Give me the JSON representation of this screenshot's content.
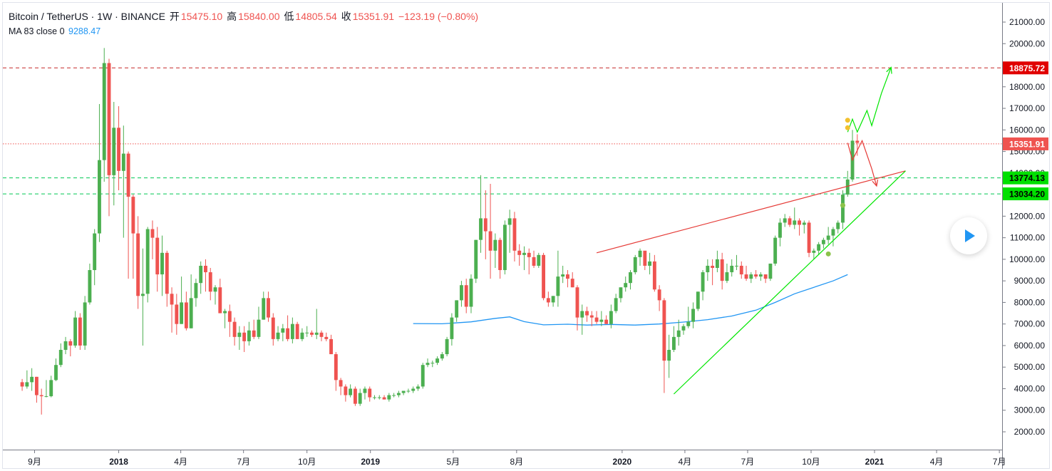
{
  "header": {
    "symbol": "Bitcoin / TetherUS · 1W · BINANCE",
    "open_label": "开",
    "open": "15475.10",
    "high_label": "高",
    "high": "15840.00",
    "low_label": "低",
    "low": "14805.54",
    "close_label": "收",
    "close": "15351.91",
    "change": "−123.19 (−0.80%)",
    "ma_label": "MA 83 close 0",
    "ma_value": "9288.47"
  },
  "colors": {
    "up": "#4caf50",
    "down": "#ef5350",
    "ma": "#2196f3",
    "trend_green": "#00e600",
    "trend_red": "#e53935",
    "grid": "#f0f3fa"
  },
  "chart_data": {
    "type": "candlestick",
    "timeframe": "1W",
    "y_ticks": [
      2000,
      3000,
      4000,
      5000,
      6000,
      7000,
      8000,
      9000,
      10000,
      11000,
      12000,
      13000,
      14000,
      15000,
      16000,
      17000,
      18000,
      19000,
      20000,
      21000
    ],
    "y_tick_labels": [
      "2000.00",
      "3000.00",
      "4000.00",
      "5000.00",
      "6000.00",
      "7000.00",
      "8000.00",
      "9000.00",
      "10000.00",
      "11000.00",
      "12000.00",
      "13000.00",
      "14000.00",
      "15000.00",
      "16000.00",
      "17000.00",
      "18000.00",
      "19000.00",
      "20000.00",
      "21000.00"
    ],
    "ylim": [
      1000,
      21800
    ],
    "x_range": [
      "2017-07-17",
      "2021-07-05"
    ],
    "x_ticks": [
      {
        "date": "2017-09-01",
        "label": "9月",
        "bold": false
      },
      {
        "date": "2018-01-01",
        "label": "2018",
        "bold": true
      },
      {
        "date": "2018-04-01",
        "label": "4月",
        "bold": false
      },
      {
        "date": "2018-07-01",
        "label": "7月",
        "bold": false
      },
      {
        "date": "2018-10-01",
        "label": "10月",
        "bold": false
      },
      {
        "date": "2019-01-01",
        "label": "2019",
        "bold": true
      },
      {
        "date": "2019-05-01",
        "label": "5月",
        "bold": false
      },
      {
        "date": "2019-08-01",
        "label": "8月",
        "bold": false
      },
      {
        "date": "2020-01-01",
        "label": "2020",
        "bold": true
      },
      {
        "date": "2020-04-01",
        "label": "4月",
        "bold": false
      },
      {
        "date": "2020-07-01",
        "label": "7月",
        "bold": false
      },
      {
        "date": "2020-10-01",
        "label": "10月",
        "bold": false
      },
      {
        "date": "2021-01-01",
        "label": "2021",
        "bold": true
      },
      {
        "date": "2021-04-01",
        "label": "4月",
        "bold": false
      },
      {
        "date": "2021-07-01",
        "label": "7月",
        "bold": false
      }
    ],
    "first_candle_date": "2017-08-14",
    "candles": [
      [
        4300,
        4450,
        3900,
        4100
      ],
      [
        4100,
        4850,
        4000,
        4300
      ],
      [
        4300,
        4950,
        3900,
        4550
      ],
      [
        4550,
        4550,
        3350,
        3700
      ],
      [
        3700,
        4000,
        2800,
        3650
      ],
      [
        3650,
        4400,
        3600,
        3650
      ],
      [
        3650,
        4600,
        3600,
        4400
      ],
      [
        4400,
        5400,
        4350,
        5100
      ],
      [
        5100,
        6100,
        5000,
        5800
      ],
      [
        5800,
        6400,
        5600,
        6200
      ],
      [
        6200,
        6300,
        5500,
        6000
      ],
      [
        6000,
        7600,
        5900,
        7300
      ],
      [
        7300,
        7500,
        5800,
        6000
      ],
      [
        6000,
        8300,
        5800,
        8000
      ],
      [
        8000,
        9800,
        7900,
        9500
      ],
      [
        9500,
        11400,
        8800,
        11200
      ],
      [
        11200,
        17200,
        10800,
        14600
      ],
      [
        14600,
        19800,
        13600,
        19100
      ],
      [
        19100,
        19300,
        12000,
        13900
      ],
      [
        13900,
        17300,
        12500,
        16100
      ],
      [
        16100,
        17100,
        13200,
        14100
      ],
      [
        14100,
        16200,
        11000,
        14900
      ],
      [
        14900,
        15000,
        9100,
        12900
      ],
      [
        12900,
        13000,
        9100,
        11200
      ],
      [
        11200,
        12000,
        7700,
        8300
      ],
      [
        8300,
        10500,
        6000,
        8400
      ],
      [
        8400,
        11500,
        8000,
        11400
      ],
      [
        11400,
        11800,
        10000,
        11000
      ],
      [
        11000,
        11500,
        8500,
        9300
      ],
      [
        9300,
        11100,
        8300,
        10300
      ],
      [
        10300,
        10400,
        7800,
        8400
      ],
      [
        8400,
        8700,
        6600,
        7900
      ],
      [
        7900,
        8400,
        6500,
        7000
      ],
      [
        7000,
        9200,
        7000,
        8000
      ],
      [
        8000,
        8500,
        6700,
        6800
      ],
      [
        6800,
        9300,
        6800,
        8200
      ],
      [
        8200,
        9100,
        7800,
        8900
      ],
      [
        8900,
        9900,
        8400,
        9700
      ],
      [
        9700,
        10000,
        8500,
        9400
      ],
      [
        9400,
        9600,
        8100,
        8500
      ],
      [
        8500,
        8800,
        7900,
        8700
      ],
      [
        8700,
        9100,
        7500,
        7500
      ],
      [
        7500,
        7700,
        6800,
        7600
      ],
      [
        7600,
        7900,
        6400,
        7100
      ],
      [
        7100,
        7300,
        6000,
        6400
      ],
      [
        6400,
        6900,
        5800,
        6600
      ],
      [
        6600,
        6900,
        5700,
        6200
      ],
      [
        6200,
        7100,
        6000,
        6700
      ],
      [
        6700,
        7200,
        6300,
        6400
      ],
      [
        6400,
        7800,
        6300,
        7200
      ],
      [
        7200,
        8500,
        7200,
        8200
      ],
      [
        8200,
        8500,
        7100,
        7300
      ],
      [
        7300,
        7500,
        6000,
        6300
      ],
      [
        6300,
        6900,
        6200,
        6600
      ],
      [
        6600,
        7000,
        6200,
        6800
      ],
      [
        6800,
        7400,
        6200,
        6300
      ],
      [
        6300,
        7300,
        6100,
        7000
      ],
      [
        7000,
        7100,
        6300,
        6300
      ],
      [
        6300,
        6800,
        6200,
        6600
      ],
      [
        6600,
        6900,
        6400,
        6600
      ],
      [
        6600,
        6700,
        6400,
        6500
      ],
      [
        6500,
        7700,
        6300,
        6600
      ],
      [
        6600,
        6700,
        6200,
        6400
      ],
      [
        6400,
        6600,
        6200,
        6300
      ],
      [
        6300,
        6500,
        5600,
        5600
      ],
      [
        5600,
        5700,
        3900,
        4400
      ],
      [
        4400,
        4500,
        3700,
        4100
      ],
      [
        4100,
        4200,
        3400,
        3700
      ],
      [
        3700,
        4200,
        3600,
        4000
      ],
      [
        4000,
        4100,
        3200,
        3300
      ],
      [
        3300,
        4000,
        3200,
        3800
      ],
      [
        3800,
        4100,
        3500,
        4000
      ],
      [
        4000,
        4100,
        3400,
        3600
      ],
      [
        3600,
        3700,
        3500,
        3600
      ],
      [
        3600,
        3700,
        3500,
        3600
      ],
      [
        3600,
        3700,
        3500,
        3500
      ],
      [
        3500,
        3800,
        3400,
        3700
      ],
      [
        3700,
        3800,
        3600,
        3700
      ],
      [
        3700,
        3900,
        3600,
        3800
      ],
      [
        3800,
        3900,
        3700,
        3900
      ],
      [
        3900,
        4000,
        3800,
        3900
      ],
      [
        3900,
        4100,
        3800,
        4000
      ],
      [
        4000,
        4200,
        3900,
        4100
      ],
      [
        4100,
        5200,
        4000,
        5100
      ],
      [
        5100,
        5400,
        5000,
        5200
      ],
      [
        5200,
        5300,
        5000,
        5200
      ],
      [
        5200,
        5500,
        5100,
        5400
      ],
      [
        5400,
        5700,
        5300,
        5600
      ],
      [
        5600,
        6400,
        5500,
        6300
      ],
      [
        6300,
        7500,
        6000,
        7300
      ],
      [
        7300,
        8100,
        7100,
        8100
      ],
      [
        8100,
        9000,
        7800,
        8800
      ],
      [
        8800,
        9100,
        7500,
        7800
      ],
      [
        7800,
        9300,
        7500,
        9100
      ],
      [
        9100,
        10900,
        8900,
        10900
      ],
      [
        10900,
        13900,
        10300,
        11900
      ],
      [
        11900,
        13200,
        10000,
        11300
      ],
      [
        11300,
        13500,
        9100,
        10400
      ],
      [
        10400,
        11200,
        9600,
        10900
      ],
      [
        10900,
        11000,
        9100,
        9500
      ],
      [
        9500,
        11800,
        9300,
        11600
      ],
      [
        11600,
        12300,
        10300,
        11900
      ],
      [
        11900,
        12200,
        9900,
        10400
      ],
      [
        10400,
        10700,
        9700,
        10200
      ],
      [
        10200,
        10600,
        9500,
        10300
      ],
      [
        10300,
        10500,
        9300,
        10100
      ],
      [
        10100,
        10400,
        9600,
        9700
      ],
      [
        9700,
        10300,
        9600,
        10200
      ],
      [
        10200,
        10300,
        8100,
        8200
      ],
      [
        8200,
        8500,
        7800,
        8000
      ],
      [
        8000,
        8300,
        7800,
        8300
      ],
      [
        8300,
        10400,
        7800,
        9200
      ],
      [
        9200,
        9700,
        8900,
        9300
      ],
      [
        9300,
        9500,
        8700,
        9100
      ],
      [
        9100,
        9400,
        8700,
        8700
      ],
      [
        8700,
        8800,
        6700,
        7300
      ],
      [
        7300,
        7900,
        6500,
        7600
      ],
      [
        7600,
        7800,
        7100,
        7400
      ],
      [
        7400,
        7600,
        6900,
        7300
      ],
      [
        7300,
        7600,
        7000,
        7100
      ],
      [
        7100,
        7600,
        6900,
        7200
      ],
      [
        7200,
        7400,
        7000,
        7000
      ],
      [
        7000,
        7900,
        6800,
        7600
      ],
      [
        7600,
        8400,
        7500,
        8200
      ],
      [
        8200,
        8700,
        8000,
        8700
      ],
      [
        8700,
        9200,
        8500,
        8900
      ],
      [
        8900,
        9500,
        8600,
        9400
      ],
      [
        9400,
        10200,
        9300,
        10100
      ],
      [
        10100,
        10500,
        9700,
        10400
      ],
      [
        10400,
        10300,
        9500,
        9700
      ],
      [
        9700,
        10300,
        9300,
        9900
      ],
      [
        9900,
        10200,
        8500,
        8600
      ],
      [
        8600,
        8800,
        7600,
        8100
      ],
      [
        8100,
        8200,
        3800,
        5300
      ],
      [
        5300,
        6500,
        4500,
        5800
      ],
      [
        5800,
        6900,
        5700,
        6400
      ],
      [
        6400,
        7200,
        6000,
        6700
      ],
      [
        6700,
        7000,
        6500,
        6900
      ],
      [
        6900,
        7800,
        6800,
        7100
      ],
      [
        7100,
        8000,
        6800,
        7700
      ],
      [
        7700,
        8500,
        7600,
        8500
      ],
      [
        8500,
        9500,
        8100,
        9400
      ],
      [
        9400,
        10000,
        9000,
        9700
      ],
      [
        9700,
        10000,
        8800,
        9600
      ],
      [
        9600,
        10400,
        9400,
        10000
      ],
      [
        10000,
        10300,
        8600,
        9000
      ],
      [
        9000,
        9800,
        8900,
        9400
      ],
      [
        9400,
        10000,
        9200,
        9700
      ],
      [
        9700,
        10200,
        9500,
        9700
      ],
      [
        9700,
        9900,
        9100,
        9300
      ],
      [
        9300,
        9700,
        9000,
        9100
      ],
      [
        9100,
        9400,
        8900,
        9300
      ],
      [
        9300,
        9500,
        9100,
        9200
      ],
      [
        9200,
        9400,
        9000,
        9300
      ],
      [
        9300,
        9300,
        8900,
        9100
      ],
      [
        9100,
        9800,
        9000,
        9800
      ],
      [
        9800,
        11100,
        9700,
        11000
      ],
      [
        11000,
        11900,
        10600,
        11700
      ],
      [
        11700,
        12100,
        11500,
        11900
      ],
      [
        11900,
        12000,
        11500,
        11600
      ],
      [
        11600,
        12400,
        11400,
        11800
      ],
      [
        11800,
        11900,
        11100,
        11600
      ],
      [
        11600,
        11800,
        11200,
        11700
      ],
      [
        11700,
        11800,
        10100,
        10300
      ],
      [
        10300,
        10500,
        10000,
        10400
      ],
      [
        10400,
        10800,
        10200,
        10700
      ],
      [
        10700,
        11000,
        10500,
        10900
      ],
      [
        10900,
        11500,
        10700,
        11100
      ],
      [
        11100,
        11500,
        10600,
        11400
      ],
      [
        11400,
        11800,
        11200,
        11700
      ],
      [
        11700,
        13200,
        11400,
        13000
      ],
      [
        13000,
        14100,
        12900,
        13700
      ],
      [
        13700,
        16000,
        13600,
        15500
      ],
      [
        15500,
        15800,
        14800,
        15400
      ]
    ],
    "ma": {
      "name": "MA 83 close 0",
      "points": [
        [
          "2019-03-04",
          7020
        ],
        [
          "2019-04-15",
          7010
        ],
        [
          "2019-05-27",
          7100
        ],
        [
          "2019-07-01",
          7260
        ],
        [
          "2019-07-22",
          7330
        ],
        [
          "2019-08-12",
          7110
        ],
        [
          "2019-09-09",
          6960
        ],
        [
          "2019-10-14",
          6990
        ],
        [
          "2019-11-11",
          6950
        ],
        [
          "2019-12-16",
          6980
        ],
        [
          "2020-01-20",
          6950
        ],
        [
          "2020-02-24",
          7000
        ],
        [
          "2020-03-30",
          7090
        ],
        [
          "2020-05-04",
          7200
        ],
        [
          "2020-06-08",
          7370
        ],
        [
          "2020-07-13",
          7640
        ],
        [
          "2020-08-10",
          8000
        ],
        [
          "2020-09-07",
          8400
        ],
        [
          "2020-10-05",
          8700
        ],
        [
          "2020-11-02",
          9000
        ],
        [
          "2020-11-23",
          9288.47
        ]
      ]
    },
    "horizontal_levels": [
      {
        "value": 18875.72,
        "label": "18875.72",
        "style": "dashed",
        "color": "#c62828"
      },
      {
        "value": 15351.91,
        "label": "15351.91",
        "style": "dotted",
        "color": "#ef5350"
      },
      {
        "value": 13774.13,
        "label": "13774.13",
        "style": "dashed",
        "color": "#00c853"
      },
      {
        "value": 13034.2,
        "label": "13034.20",
        "style": "dashed",
        "color": "#00c853"
      }
    ],
    "trendlines": [
      {
        "color": "#e53935",
        "points": [
          [
            "2019-11-25",
            10300
          ],
          [
            "2021-02-15",
            14100
          ]
        ]
      },
      {
        "color": "#00e600",
        "points": [
          [
            "2020-03-16",
            3750
          ],
          [
            "2021-02-15",
            14100
          ]
        ]
      },
      {
        "color": "#00e600",
        "arrow": true,
        "points": [
          [
            "2020-11-23",
            15900
          ],
          [
            "2020-11-30",
            16500
          ],
          [
            "2020-12-07",
            15900
          ],
          [
            "2020-12-21",
            16900
          ],
          [
            "2020-12-28",
            16200
          ],
          [
            "2021-01-11",
            17700
          ],
          [
            "2021-01-25",
            18900
          ]
        ]
      },
      {
        "color": "#e53935",
        "arrow": true,
        "points": [
          [
            "2020-11-23",
            15400
          ],
          [
            "2020-11-30",
            14600
          ],
          [
            "2020-12-14",
            15500
          ],
          [
            "2020-12-28",
            14200
          ],
          [
            "2021-01-04",
            13400
          ]
        ]
      }
    ],
    "markers": [
      {
        "date": "2020-11-23",
        "value": 16450,
        "color": "#f2c12e"
      },
      {
        "date": "2020-11-23",
        "value": 16100,
        "color": "#f2c12e"
      },
      {
        "date": "2020-11-16",
        "value": 12500,
        "color": "#8bc34a"
      },
      {
        "date": "2020-10-26",
        "value": 10250,
        "color": "#8bc34a"
      }
    ]
  }
}
